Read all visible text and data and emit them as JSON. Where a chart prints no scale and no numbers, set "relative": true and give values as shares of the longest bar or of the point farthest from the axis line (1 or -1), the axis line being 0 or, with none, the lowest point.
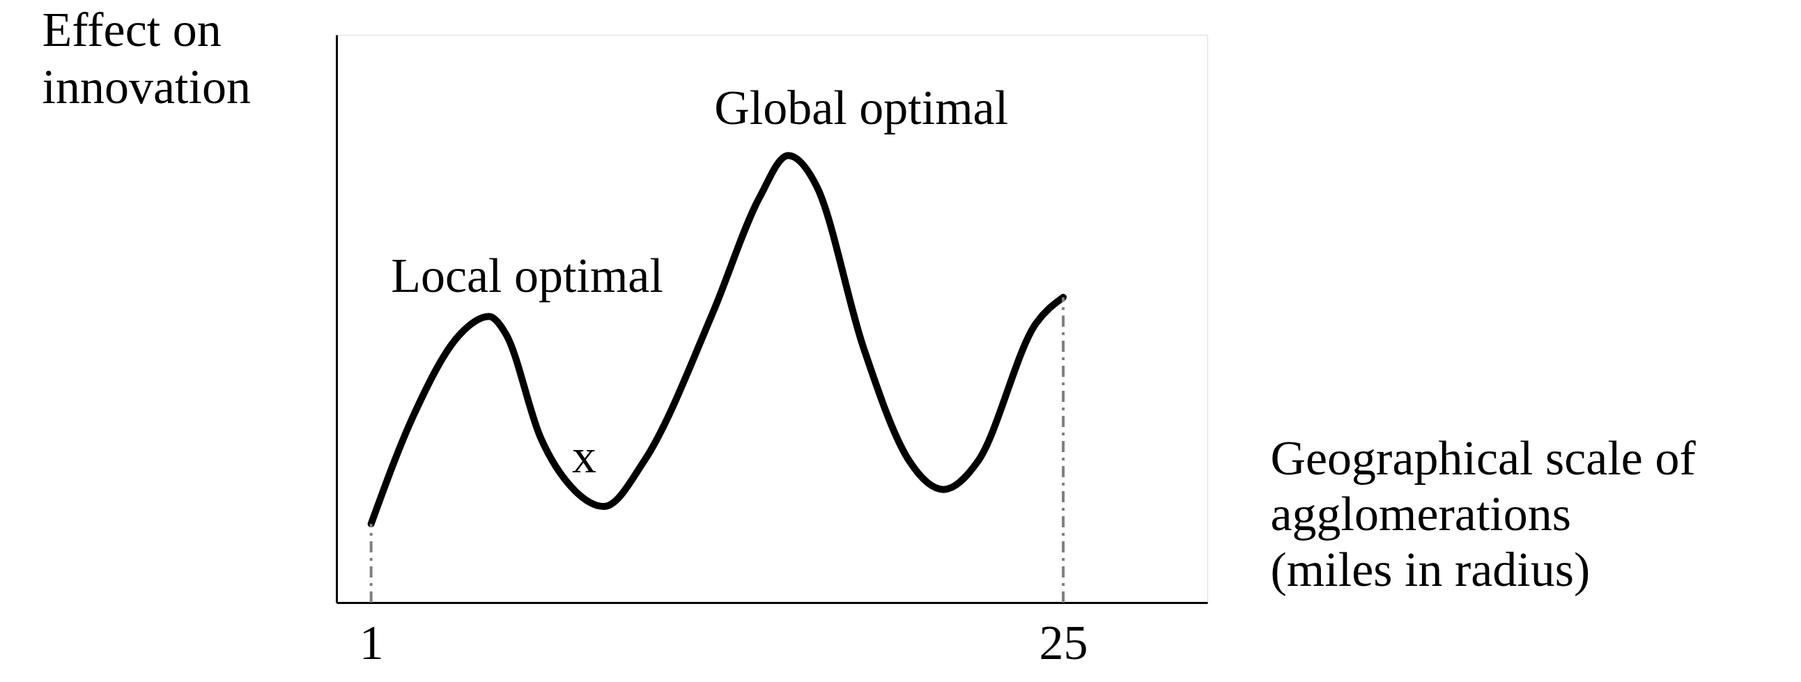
{
  "chart_data": {
    "type": "line",
    "relative": true,
    "xlabel": "Geographical scale of\nagglomerations\n(miles in radius)",
    "ylabel": "Effect on\ninnovation",
    "x": [
      1,
      2.48,
      4.08,
      5.08,
      5.68,
      6.87,
      8.07,
      9.07,
      10.47,
      12.86,
      14.46,
      15.46,
      16.46,
      18.06,
      19.66,
      20.85,
      22.05,
      24.05,
      25
    ],
    "series": [
      {
        "color": "#000000",
        "values": [
          0.176,
          0.42,
          0.6,
          0.64,
          0.6,
          0.37,
          0.25,
          0.215,
          0.317,
          0.65,
          0.905,
          1.0,
          0.93,
          0.573,
          0.317,
          0.253,
          0.317,
          0.624,
          0.683
        ]
      }
    ],
    "xlim": [
      -0.2,
      30
    ],
    "xticks": [
      1,
      25
    ],
    "ref_lines": [
      {
        "axis": "x",
        "value": 1,
        "color": "#808080",
        "line_style": "dashed"
      },
      {
        "axis": "x",
        "value": 25,
        "color": "#808080",
        "line_style": "dashed"
      }
    ],
    "annotations": [
      {
        "text": "Global optimal",
        "x": 15.46,
        "y": 1.0
      },
      {
        "text": "Local optimal",
        "x": 5.08,
        "y": 0.64
      },
      {
        "text": "x",
        "x": 7.3,
        "y": 0.33
      }
    ],
    "grid": false
  }
}
